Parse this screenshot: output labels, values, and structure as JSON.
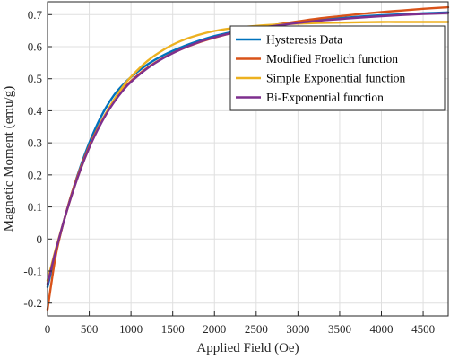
{
  "chart_data": {
    "type": "line",
    "xlabel": "Applied Field (Oe)",
    "ylabel": "Magnetic Moment (emu/g)",
    "xlim": [
      0,
      4800
    ],
    "ylim": [
      -0.24,
      0.74
    ],
    "xticks": [
      0,
      500,
      1000,
      1500,
      2000,
      2500,
      3000,
      3500,
      4000,
      4500
    ],
    "yticks": [
      -0.2,
      -0.1,
      0,
      0.1,
      0.2,
      0.3,
      0.4,
      0.5,
      0.6,
      0.7
    ],
    "xtick_labels": [
      "0",
      "500",
      "1000",
      "1500",
      "2000",
      "2500",
      "3000",
      "3500",
      "4000",
      "4500"
    ],
    "ytick_labels": [
      "-0.2",
      "-0.1",
      "0",
      "0.1",
      "0.2",
      "0.3",
      "0.4",
      "0.5",
      "0.6",
      "0.7"
    ],
    "grid": true,
    "legend_position": "top-right",
    "x": [
      0,
      100,
      200,
      300,
      400,
      500,
      600,
      700,
      800,
      900,
      1000,
      1200,
      1400,
      1600,
      1800,
      2000,
      2250,
      2500,
      2750,
      3000,
      3250,
      3500,
      3750,
      4000,
      4250,
      4500,
      4800
    ],
    "series": [
      {
        "name": "Hysteresis Data",
        "color": "#0072BD",
        "values": [
          -0.15,
          -0.04,
          0.06,
          0.15,
          0.23,
          0.3,
          0.36,
          0.41,
          0.45,
          0.48,
          0.505,
          0.545,
          0.575,
          0.598,
          0.617,
          0.633,
          0.648,
          0.66,
          0.669,
          0.677,
          0.683,
          0.689,
          0.694,
          0.698,
          0.701,
          0.704,
          0.707
        ]
      },
      {
        "name": "Modified Froelich function",
        "color": "#D95319",
        "values": [
          -0.22,
          -0.05,
          0.06,
          0.15,
          0.225,
          0.29,
          0.345,
          0.392,
          0.432,
          0.465,
          0.493,
          0.535,
          0.567,
          0.592,
          0.612,
          0.628,
          0.645,
          0.658,
          0.669,
          0.679,
          0.688,
          0.695,
          0.702,
          0.708,
          0.713,
          0.718,
          0.723
        ]
      },
      {
        "name": "Simple Exponential function",
        "color": "#EDB120",
        "values": [
          -0.13,
          -0.03,
          0.06,
          0.145,
          0.22,
          0.285,
          0.342,
          0.392,
          0.436,
          0.474,
          0.506,
          0.556,
          0.592,
          0.618,
          0.636,
          0.649,
          0.659,
          0.665,
          0.669,
          0.672,
          0.674,
          0.675,
          0.676,
          0.677,
          0.677,
          0.677,
          0.677
        ]
      },
      {
        "name": "Bi-Exponential function",
        "color": "#7E2F8E",
        "values": [
          -0.14,
          -0.035,
          0.06,
          0.145,
          0.22,
          0.285,
          0.34,
          0.388,
          0.428,
          0.462,
          0.49,
          0.533,
          0.566,
          0.592,
          0.613,
          0.629,
          0.645,
          0.657,
          0.666,
          0.674,
          0.681,
          0.686,
          0.691,
          0.695,
          0.699,
          0.702,
          0.705
        ]
      }
    ]
  }
}
